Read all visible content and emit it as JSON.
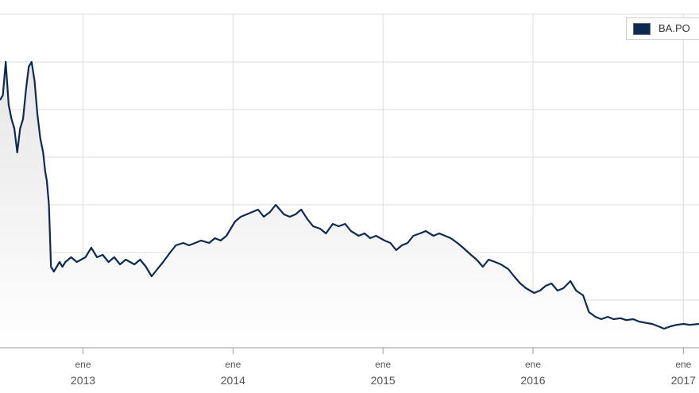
{
  "chart_data": {
    "type": "area",
    "xlabel": "",
    "ylabel": "",
    "grid": true,
    "legend_position": "top-right",
    "colors": {
      "line": "#0d2b52",
      "fill_top": "#e6e6e6",
      "fill_bottom": "#ffffff",
      "grid": "#dcdcdc"
    },
    "x_ticks": [
      {
        "month": "ene",
        "year": "2013"
      },
      {
        "month": "ene",
        "year": "2014"
      },
      {
        "month": "ene",
        "year": "2015"
      },
      {
        "month": "ene",
        "year": "2016"
      },
      {
        "month": "ene",
        "year": "2017"
      }
    ],
    "x_range": [
      "2012-06-13",
      "2017-02-08"
    ],
    "y_range": [
      0,
      7
    ],
    "series": [
      {
        "name": "BA.PO",
        "points": [
          [
            "2012-06-13",
            5.2
          ],
          [
            "2012-06-20",
            5.3
          ],
          [
            "2012-06-27",
            6.0
          ],
          [
            "2012-07-04",
            5.1
          ],
          [
            "2012-07-11",
            4.8
          ],
          [
            "2012-07-18",
            4.6
          ],
          [
            "2012-07-25",
            4.1
          ],
          [
            "2012-08-01",
            4.6
          ],
          [
            "2012-08-08",
            4.8
          ],
          [
            "2012-08-15",
            5.4
          ],
          [
            "2012-08-22",
            5.9
          ],
          [
            "2012-08-29",
            6.0
          ],
          [
            "2012-09-05",
            5.6
          ],
          [
            "2012-09-12",
            4.9
          ],
          [
            "2012-09-19",
            4.4
          ],
          [
            "2012-09-26",
            4.1
          ],
          [
            "2012-10-01",
            3.7
          ],
          [
            "2012-10-05",
            3.5
          ],
          [
            "2012-10-10",
            3.0
          ],
          [
            "2012-10-15",
            1.7
          ],
          [
            "2012-10-22",
            1.6
          ],
          [
            "2012-10-29",
            1.7
          ],
          [
            "2012-11-05",
            1.8
          ],
          [
            "2012-11-12",
            1.7
          ],
          [
            "2012-11-19",
            1.8
          ],
          [
            "2012-12-03",
            1.9
          ],
          [
            "2012-12-17",
            1.8
          ],
          [
            "2013-01-07",
            1.9
          ],
          [
            "2013-01-21",
            2.1
          ],
          [
            "2013-02-04",
            1.9
          ],
          [
            "2013-02-18",
            1.95
          ],
          [
            "2013-03-04",
            1.8
          ],
          [
            "2013-03-18",
            1.9
          ],
          [
            "2013-04-01",
            1.75
          ],
          [
            "2013-04-15",
            1.85
          ],
          [
            "2013-05-06",
            1.75
          ],
          [
            "2013-05-20",
            1.85
          ],
          [
            "2013-06-03",
            1.7
          ],
          [
            "2013-06-17",
            1.5
          ],
          [
            "2013-07-01",
            1.65
          ],
          [
            "2013-07-15",
            1.8
          ],
          [
            "2013-08-01",
            2.0
          ],
          [
            "2013-08-15",
            2.15
          ],
          [
            "2013-09-02",
            2.2
          ],
          [
            "2013-09-16",
            2.15
          ],
          [
            "2013-10-01",
            2.2
          ],
          [
            "2013-10-15",
            2.25
          ],
          [
            "2013-11-04",
            2.2
          ],
          [
            "2013-11-18",
            2.3
          ],
          [
            "2013-12-02",
            2.25
          ],
          [
            "2013-12-16",
            2.35
          ],
          [
            "2014-01-06",
            2.65
          ],
          [
            "2014-01-20",
            2.75
          ],
          [
            "2014-02-03",
            2.8
          ],
          [
            "2014-02-17",
            2.85
          ],
          [
            "2014-03-03",
            2.9
          ],
          [
            "2014-03-17",
            2.75
          ],
          [
            "2014-04-01",
            2.85
          ],
          [
            "2014-04-15",
            3.0
          ],
          [
            "2014-05-05",
            2.8
          ],
          [
            "2014-05-19",
            2.75
          ],
          [
            "2014-06-02",
            2.8
          ],
          [
            "2014-06-16",
            2.9
          ],
          [
            "2014-07-01",
            2.7
          ],
          [
            "2014-07-15",
            2.55
          ],
          [
            "2014-08-01",
            2.5
          ],
          [
            "2014-08-15",
            2.4
          ],
          [
            "2014-09-01",
            2.6
          ],
          [
            "2014-09-15",
            2.55
          ],
          [
            "2014-10-01",
            2.6
          ],
          [
            "2014-10-15",
            2.45
          ],
          [
            "2014-11-03",
            2.35
          ],
          [
            "2014-11-17",
            2.4
          ],
          [
            "2014-12-01",
            2.3
          ],
          [
            "2014-12-15",
            2.35
          ],
          [
            "2015-01-05",
            2.25
          ],
          [
            "2015-01-19",
            2.2
          ],
          [
            "2015-02-02",
            2.05
          ],
          [
            "2015-02-16",
            2.15
          ],
          [
            "2015-03-02",
            2.2
          ],
          [
            "2015-03-16",
            2.35
          ],
          [
            "2015-04-01",
            2.4
          ],
          [
            "2015-04-15",
            2.45
          ],
          [
            "2015-05-04",
            2.35
          ],
          [
            "2015-05-18",
            2.4
          ],
          [
            "2015-06-01",
            2.35
          ],
          [
            "2015-06-15",
            2.3
          ],
          [
            "2015-07-01",
            2.2
          ],
          [
            "2015-07-15",
            2.1
          ],
          [
            "2015-08-03",
            1.95
          ],
          [
            "2015-08-17",
            1.85
          ],
          [
            "2015-09-01",
            1.7
          ],
          [
            "2015-09-15",
            1.85
          ],
          [
            "2015-10-01",
            1.8
          ],
          [
            "2015-10-15",
            1.75
          ],
          [
            "2015-11-02",
            1.65
          ],
          [
            "2015-11-16",
            1.5
          ],
          [
            "2015-12-01",
            1.35
          ],
          [
            "2015-12-15",
            1.25
          ],
          [
            "2016-01-04",
            1.15
          ],
          [
            "2016-01-18",
            1.2
          ],
          [
            "2016-02-01",
            1.3
          ],
          [
            "2016-02-15",
            1.35
          ],
          [
            "2016-03-01",
            1.2
          ],
          [
            "2016-03-15",
            1.25
          ],
          [
            "2016-04-01",
            1.4
          ],
          [
            "2016-04-15",
            1.2
          ],
          [
            "2016-05-02",
            1.1
          ],
          [
            "2016-05-16",
            0.75
          ],
          [
            "2016-06-01",
            0.65
          ],
          [
            "2016-06-15",
            0.6
          ],
          [
            "2016-07-01",
            0.65
          ],
          [
            "2016-07-15",
            0.6
          ],
          [
            "2016-08-01",
            0.62
          ],
          [
            "2016-08-15",
            0.58
          ],
          [
            "2016-09-01",
            0.6
          ],
          [
            "2016-09-15",
            0.55
          ],
          [
            "2016-10-03",
            0.52
          ],
          [
            "2016-10-17",
            0.5
          ],
          [
            "2016-11-01",
            0.45
          ],
          [
            "2016-11-15",
            0.4
          ],
          [
            "2016-12-01",
            0.45
          ],
          [
            "2016-12-15",
            0.48
          ],
          [
            "2017-01-02",
            0.5
          ],
          [
            "2017-01-16",
            0.48
          ],
          [
            "2017-02-08",
            0.5
          ]
        ]
      }
    ]
  }
}
